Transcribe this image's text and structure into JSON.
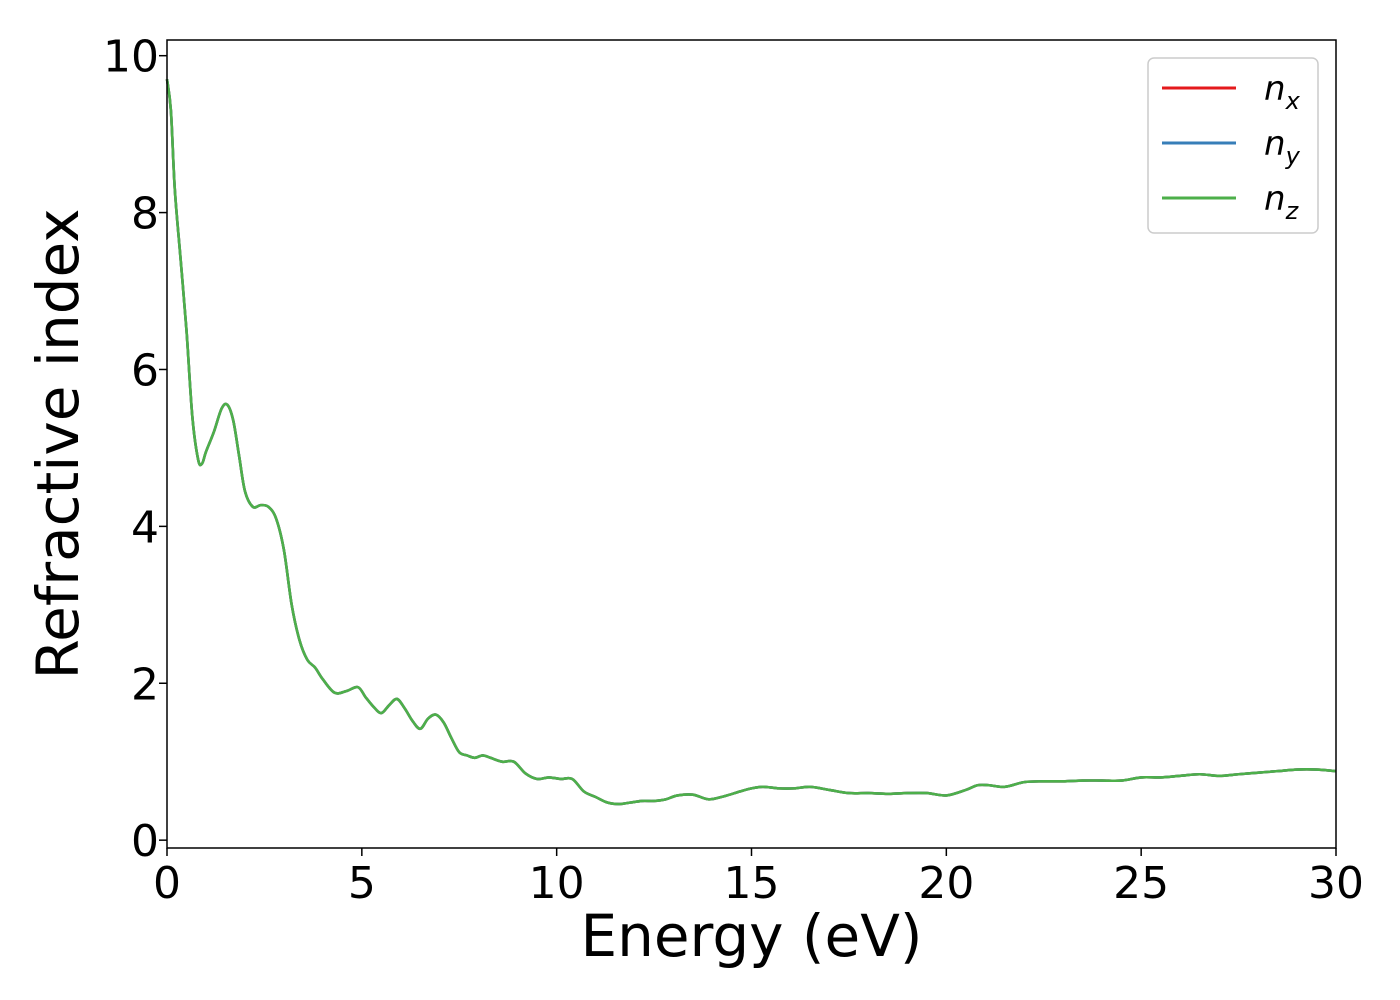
{
  "chart_data": {
    "type": "line",
    "title": "",
    "xlabel": "Energy (eV)",
    "ylabel": "Refractive index",
    "xlim": [
      0,
      30
    ],
    "ylim": [
      -0.1,
      10.2
    ],
    "xticks": [
      0,
      5,
      10,
      15,
      20,
      25,
      30
    ],
    "yticks": [
      0,
      2,
      4,
      6,
      8,
      10
    ],
    "grid": false,
    "legend_position": "top-right",
    "series": [
      {
        "name": "n_x",
        "label_base": "n",
        "label_sub": "x",
        "color": "#e41a1c",
        "x": [
          0,
          0.1,
          0.2,
          0.35,
          0.5,
          0.65,
          0.8,
          0.9,
          1.0,
          1.2,
          1.4,
          1.55,
          1.7,
          1.85,
          2.0,
          2.2,
          2.4,
          2.6,
          2.8,
          3.0,
          3.2,
          3.4,
          3.6,
          3.8,
          4.0,
          4.3,
          4.6,
          4.9,
          5.1,
          5.3,
          5.5,
          5.7,
          5.9,
          6.1,
          6.3,
          6.5,
          6.7,
          6.9,
          7.1,
          7.3,
          7.5,
          7.7,
          7.9,
          8.1,
          8.3,
          8.6,
          8.9,
          9.2,
          9.5,
          9.8,
          10.1,
          10.4,
          10.7,
          11.0,
          11.3,
          11.6,
          11.9,
          12.2,
          12.5,
          12.8,
          13.1,
          13.5,
          13.9,
          14.3,
          14.7,
          15.0,
          15.3,
          15.7,
          16.1,
          16.5,
          17.0,
          17.5,
          18.0,
          18.5,
          19.0,
          19.5,
          20.0,
          20.5,
          20.8,
          21.1,
          21.5,
          22.0,
          22.5,
          23.0,
          23.5,
          24.0,
          24.5,
          25.0,
          25.5,
          26.0,
          26.5,
          27.0,
          27.5,
          28.0,
          28.5,
          29.0,
          29.5,
          30.0
        ],
        "y": [
          9.7,
          9.3,
          8.3,
          7.4,
          6.5,
          5.4,
          4.85,
          4.8,
          4.95,
          5.2,
          5.5,
          5.55,
          5.35,
          4.9,
          4.45,
          4.25,
          4.27,
          4.25,
          4.1,
          3.7,
          3.0,
          2.55,
          2.3,
          2.2,
          2.05,
          1.88,
          1.9,
          1.95,
          1.82,
          1.7,
          1.62,
          1.72,
          1.8,
          1.68,
          1.52,
          1.42,
          1.55,
          1.6,
          1.5,
          1.3,
          1.12,
          1.08,
          1.05,
          1.08,
          1.05,
          1.0,
          1.0,
          0.85,
          0.78,
          0.8,
          0.78,
          0.78,
          0.62,
          0.55,
          0.48,
          0.46,
          0.48,
          0.5,
          0.5,
          0.52,
          0.57,
          0.58,
          0.52,
          0.56,
          0.62,
          0.66,
          0.68,
          0.66,
          0.66,
          0.68,
          0.64,
          0.6,
          0.6,
          0.59,
          0.6,
          0.6,
          0.57,
          0.64,
          0.7,
          0.7,
          0.68,
          0.74,
          0.75,
          0.75,
          0.76,
          0.76,
          0.76,
          0.8,
          0.8,
          0.82,
          0.84,
          0.82,
          0.84,
          0.86,
          0.88,
          0.9,
          0.9,
          0.88
        ]
      },
      {
        "name": "n_y",
        "label_base": "n",
        "label_sub": "y",
        "color": "#377eb8",
        "same_as": "n_x"
      },
      {
        "name": "n_z",
        "label_base": "n",
        "label_sub": "z",
        "color": "#4daf4a",
        "same_as": "n_x"
      }
    ]
  }
}
